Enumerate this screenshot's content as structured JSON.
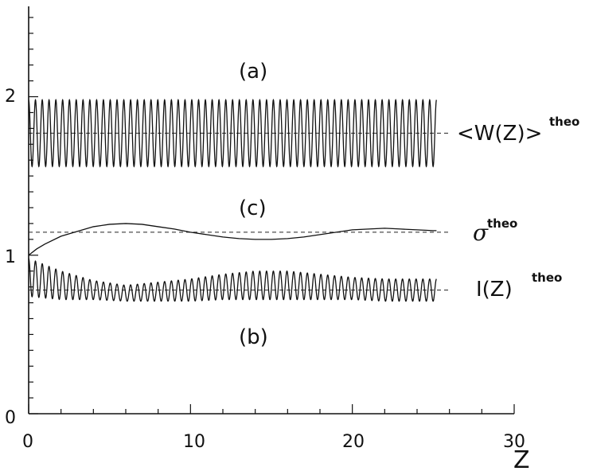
{
  "chart_data": {
    "type": "line",
    "xlabel": "Z",
    "ylabel": "",
    "xlim": [
      0,
      30
    ],
    "ylim": [
      0,
      2.57
    ],
    "x_ticks": [
      "0",
      "10",
      "20",
      "30"
    ],
    "y_ticks": [
      "0",
      "1",
      "2"
    ],
    "grid": false,
    "annotations": {
      "a": "(a)",
      "b": "(b)",
      "c": "(c)"
    },
    "series": [
      {
        "key": "W",
        "label_main": "<W(Z)>",
        "label_sup": "theo",
        "style": "oscillating",
        "x_range": [
          0,
          25.2
        ],
        "center": [
          [
            0,
            1.77
          ],
          [
            25.2,
            1.77
          ]
        ],
        "amplitude": [
          [
            0,
            0.21
          ],
          [
            25.2,
            0.21
          ]
        ],
        "period": 0.42
      },
      {
        "key": "sigma",
        "label_main": "σ",
        "label_sup": "theo",
        "style": "smooth",
        "points": [
          [
            0,
            1.0
          ],
          [
            0.5,
            1.04
          ],
          [
            1,
            1.07
          ],
          [
            2,
            1.12
          ],
          [
            3,
            1.15
          ],
          [
            4,
            1.18
          ],
          [
            5,
            1.195
          ],
          [
            6,
            1.2
          ],
          [
            7,
            1.195
          ],
          [
            8,
            1.18
          ],
          [
            9,
            1.165
          ],
          [
            10,
            1.145
          ],
          [
            11,
            1.13
          ],
          [
            12,
            1.115
          ],
          [
            13,
            1.105
          ],
          [
            14,
            1.1
          ],
          [
            15,
            1.1
          ],
          [
            16,
            1.105
          ],
          [
            17,
            1.115
          ],
          [
            18,
            1.13
          ],
          [
            19,
            1.145
          ],
          [
            20,
            1.16
          ],
          [
            21,
            1.165
          ],
          [
            22,
            1.17
          ],
          [
            23,
            1.165
          ],
          [
            24,
            1.16
          ],
          [
            25,
            1.155
          ],
          [
            25.2,
            1.155
          ]
        ]
      },
      {
        "key": "I",
        "label_main": "I(Z)",
        "label_sup": "theo",
        "style": "oscillating",
        "x_range": [
          0,
          25.2
        ],
        "period": 0.42,
        "center": [
          [
            0,
            0.86
          ],
          [
            2,
            0.81
          ],
          [
            4,
            0.78
          ],
          [
            6,
            0.76
          ],
          [
            8,
            0.77
          ],
          [
            10,
            0.78
          ],
          [
            12,
            0.8
          ],
          [
            14,
            0.81
          ],
          [
            16,
            0.81
          ],
          [
            18,
            0.8
          ],
          [
            20,
            0.79
          ],
          [
            22,
            0.78
          ],
          [
            25.2,
            0.78
          ]
        ],
        "amplitude": [
          [
            0,
            0.12
          ],
          [
            2,
            0.09
          ],
          [
            4,
            0.06
          ],
          [
            6,
            0.05
          ],
          [
            8,
            0.06
          ],
          [
            10,
            0.07
          ],
          [
            12,
            0.08
          ],
          [
            14,
            0.09
          ],
          [
            16,
            0.09
          ],
          [
            18,
            0.08
          ],
          [
            20,
            0.07
          ],
          [
            22,
            0.07
          ],
          [
            25.2,
            0.07
          ]
        ]
      }
    ],
    "reference_lines": [
      {
        "key": "W",
        "y": 1.77,
        "x_range": [
          0,
          30
        ]
      },
      {
        "key": "sigma",
        "y": 1.145,
        "x_range": [
          0,
          30
        ]
      },
      {
        "key": "I",
        "y": 0.78,
        "x_range": [
          0,
          30
        ]
      }
    ]
  }
}
